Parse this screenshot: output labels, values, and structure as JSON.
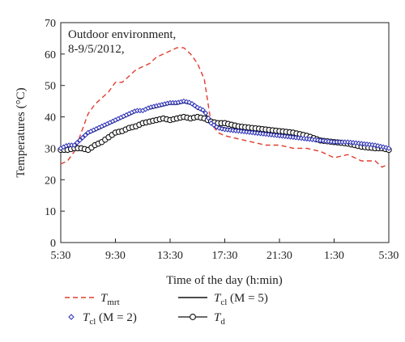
{
  "chart_data": {
    "type": "line",
    "xlabel": "Time of the day (h:min)",
    "ylabel": "Temperatures (°C)",
    "x_ticks": [
      "5:30",
      "9:30",
      "13:30",
      "17:30",
      "21:30",
      "1:30",
      "5:30"
    ],
    "x_tick_hours": [
      0,
      4,
      8,
      12,
      16,
      20,
      24
    ],
    "xlim_hours": [
      0,
      24
    ],
    "ylim": [
      0,
      70
    ],
    "y_ticks": [
      0,
      10,
      20,
      30,
      40,
      50,
      60,
      70
    ],
    "grid": false,
    "annotation": [
      "Outdoor environment,",
      "8-9/5/2012,"
    ],
    "legend_position": "bottom",
    "series": [
      {
        "key": "tmrt",
        "legend_main": "T",
        "legend_sub": "mrt",
        "legend_rest": "",
        "style": "dashed",
        "color": "#e03c2e",
        "marker": "none",
        "x": [
          0,
          0.5,
          1,
          1.5,
          2,
          2.5,
          3,
          3.5,
          4,
          4.5,
          5,
          5.5,
          6,
          6.5,
          7,
          7.5,
          8,
          8.5,
          9,
          9.5,
          10,
          10.5,
          11,
          11.5,
          12,
          13,
          14,
          15,
          16,
          17,
          18,
          19,
          20,
          21,
          22,
          23,
          23.5,
          24
        ],
        "y": [
          25,
          26,
          29,
          35,
          41,
          44,
          46,
          48,
          51,
          51,
          53,
          55,
          56,
          57,
          59,
          60,
          61,
          62,
          62,
          60,
          57,
          52,
          38,
          35,
          34,
          33,
          32,
          31,
          31,
          30,
          30,
          29,
          27,
          28,
          26,
          26,
          24,
          25
        ]
      },
      {
        "key": "tcl2",
        "legend_main": "T",
        "legend_sub": "cl",
        "legend_rest": " (M = 2)",
        "style": "markers",
        "color": "#2b2fb5",
        "marker": "diamond",
        "x": [
          0,
          0.5,
          1,
          1.5,
          2,
          2.5,
          3,
          3.5,
          4,
          4.5,
          5,
          5.5,
          6,
          6.5,
          7,
          7.5,
          8,
          8.5,
          9,
          9.5,
          10,
          10.5,
          11,
          11.5,
          12,
          13,
          14,
          15,
          16,
          17,
          18,
          19,
          20,
          21,
          22,
          23,
          23.5,
          24
        ],
        "y": [
          30,
          31,
          31,
          33,
          35,
          36,
          37,
          38,
          39,
          40,
          41,
          42,
          42,
          43,
          43.5,
          44,
          44.5,
          44.5,
          45,
          44.5,
          43,
          42,
          38,
          36.5,
          36,
          35.5,
          35,
          34.5,
          34,
          33.5,
          33,
          32.5,
          32,
          32,
          31.5,
          31,
          30.5,
          30
        ]
      },
      {
        "key": "tcl5",
        "legend_main": "T",
        "legend_sub": "cl",
        "legend_rest": " (M = 5)",
        "style": "solid",
        "color": "#111111",
        "marker": "none",
        "x": [
          0,
          0.5,
          1,
          1.5,
          2,
          2.5,
          3,
          3.5,
          4,
          4.5,
          5,
          5.5,
          6,
          6.5,
          7,
          7.5,
          8,
          8.5,
          9,
          9.5,
          10,
          10.5,
          11,
          11.5,
          12,
          13,
          14,
          15,
          16,
          17,
          18,
          19,
          20,
          21,
          22,
          23,
          23.5,
          24
        ],
        "y": [
          30,
          30.5,
          31,
          32.5,
          34.5,
          35.5,
          36.5,
          37.5,
          38.5,
          39.5,
          40.5,
          41.5,
          42,
          42.5,
          43,
          43.5,
          44,
          44,
          44.5,
          44,
          42.5,
          41.5,
          38.5,
          37,
          36.5,
          36,
          35.5,
          35,
          34.5,
          34,
          33.5,
          33,
          32.5,
          32,
          31.5,
          31,
          30.5,
          30
        ]
      },
      {
        "key": "td",
        "legend_main": "T",
        "legend_sub": "d",
        "legend_rest": "",
        "style": "circles",
        "color": "#111111",
        "marker": "circle",
        "x": [
          0,
          0.5,
          1,
          1.5,
          2,
          2.5,
          3,
          3.5,
          4,
          4.5,
          5,
          5.5,
          6,
          6.5,
          7,
          7.5,
          8,
          8.5,
          9,
          9.5,
          10,
          10.5,
          11,
          11.5,
          12,
          13,
          14,
          15,
          16,
          17,
          18,
          19,
          20,
          21,
          22,
          23,
          23.5,
          24
        ],
        "y": [
          29.5,
          29.5,
          30,
          30,
          29.5,
          31,
          32,
          33.5,
          35,
          35.5,
          36.5,
          37,
          38,
          38.5,
          39,
          39.5,
          39,
          39.5,
          40,
          39.5,
          40,
          39.5,
          38.5,
          38,
          38,
          37,
          36.5,
          36,
          35.5,
          35,
          34,
          32.5,
          32,
          31.5,
          30.5,
          30,
          30,
          29.5
        ]
      }
    ]
  }
}
